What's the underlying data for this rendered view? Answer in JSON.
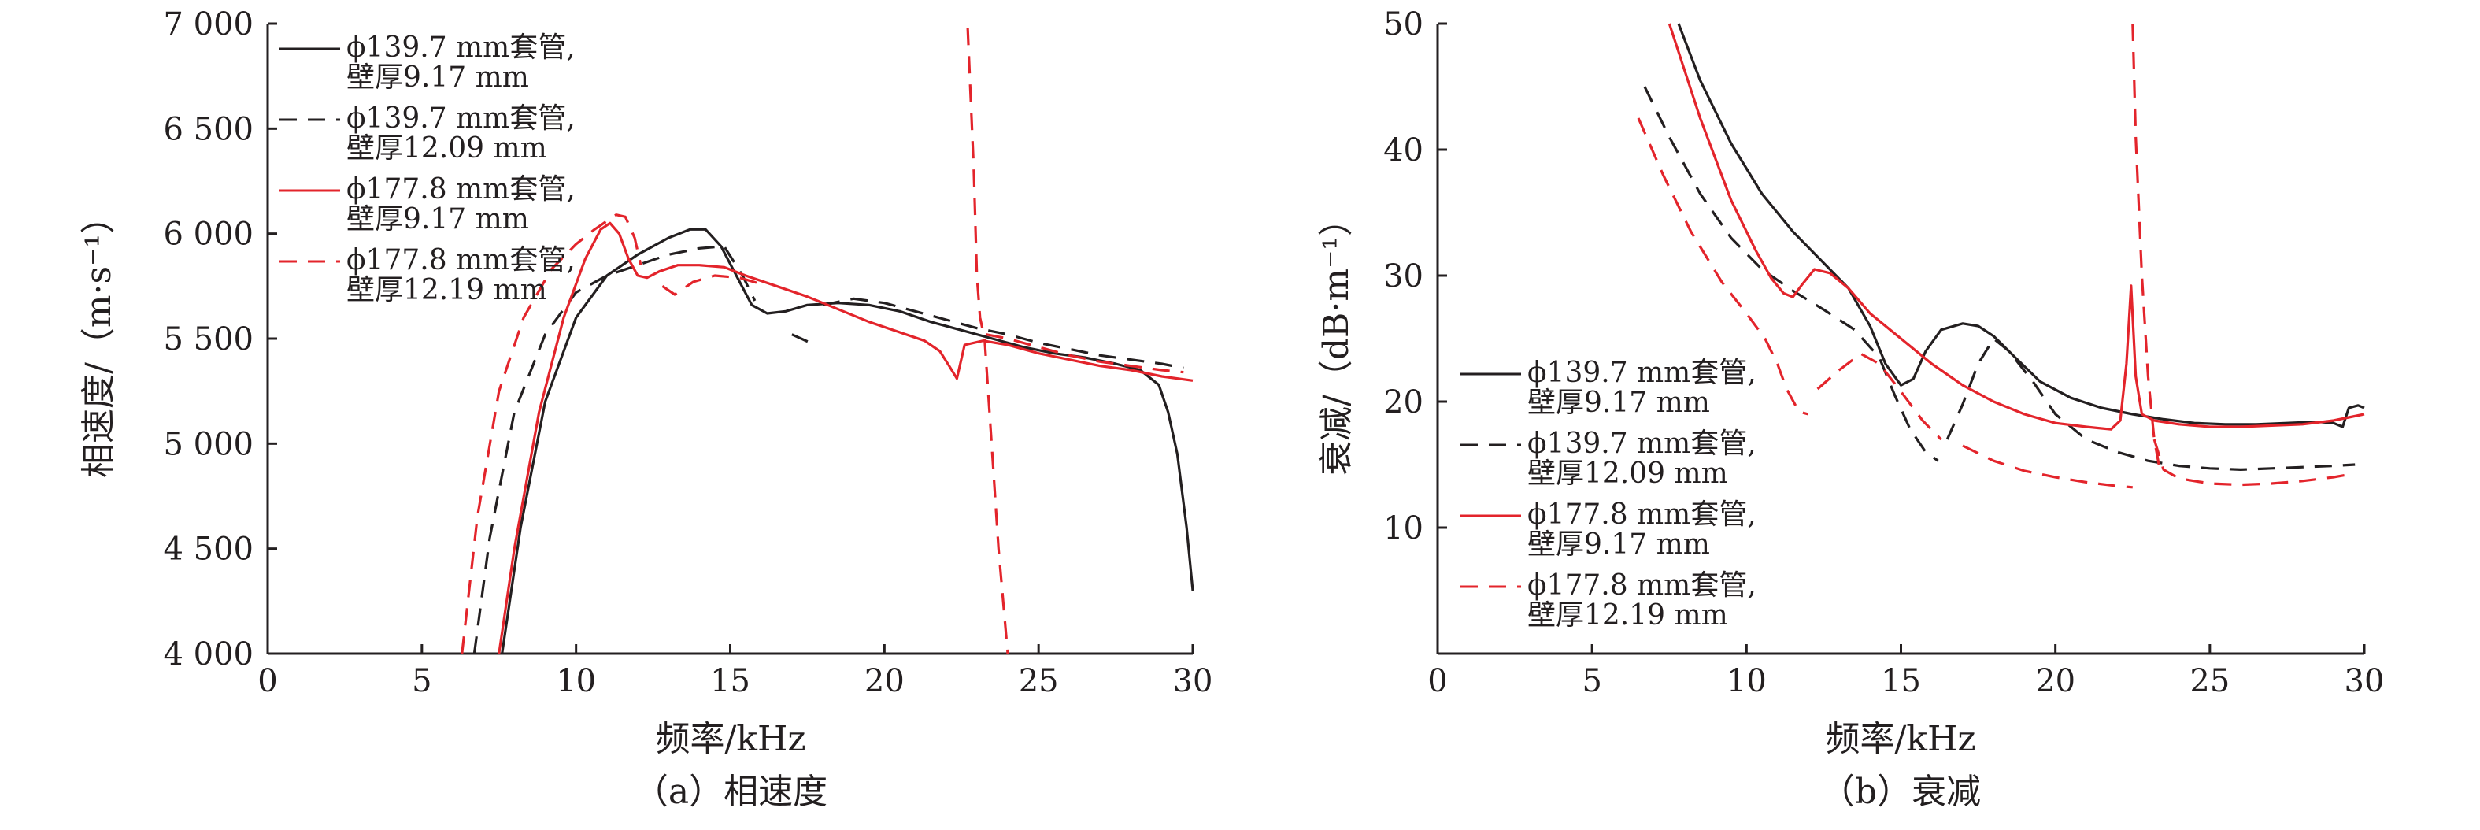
{
  "colors": {
    "black": "#231f20",
    "red": "#e3242b"
  },
  "chart_data": [
    {
      "type": "line",
      "caption": "（a）相速度",
      "xlabel": "频率/kHz",
      "ylabel": "相速度/（m·s⁻¹）",
      "xlim": [
        0,
        30
      ],
      "ylim": [
        4000,
        7000
      ],
      "xticks": [
        0,
        5,
        10,
        15,
        20,
        25,
        30
      ],
      "yticks": [
        4000,
        4500,
        5000,
        5500,
        6000,
        6500,
        7000
      ],
      "xtick_labels": [
        "0",
        "5",
        "10",
        "15",
        "20",
        "25",
        "30"
      ],
      "ytick_labels": [
        "4 000",
        "4 500",
        "5 000",
        "5 500",
        "6 000",
        "6 500",
        "7 000"
      ],
      "grid": false,
      "legend_position": "top-left",
      "series": [
        {
          "name": "ϕ139.7 mm套管, 壁厚9.17 mm",
          "legend_lines": [
            "ϕ139.7 mm套管,",
            "壁厚9.17 mm"
          ],
          "color": "#231f20",
          "dash": "solid",
          "x": [
            7.6,
            8.2,
            9.0,
            10.0,
            11.0,
            12.0,
            13.0,
            13.7,
            14.2,
            14.7,
            15.2,
            15.7,
            16.2,
            16.8,
            17.5,
            18.5,
            19.5,
            20.5,
            21.5,
            22.5,
            23.5,
            24.5,
            25.5,
            26.5,
            27.5,
            28.3,
            28.9,
            29.2,
            29.5,
            29.8,
            30.0
          ],
          "y": [
            4000,
            4600,
            5200,
            5600,
            5800,
            5900,
            5980,
            6020,
            6020,
            5940,
            5800,
            5660,
            5620,
            5630,
            5660,
            5670,
            5660,
            5630,
            5580,
            5540,
            5500,
            5460,
            5430,
            5410,
            5380,
            5350,
            5280,
            5150,
            4950,
            4600,
            4300
          ]
        },
        {
          "name": "ϕ139.7 mm套管, 壁厚12.09 mm",
          "legend_lines": [
            "ϕ139.7 mm套管,",
            "壁厚12.09 mm"
          ],
          "color": "#231f20",
          "dash": "dashed",
          "segments": [
            {
              "x": [
                6.7,
                7.2,
                8.0,
                9.0,
                10.0,
                11.0,
                12.0,
                13.0,
                14.0,
                14.8,
                15.4,
                15.8
              ],
              "y": [
                4000,
                4550,
                5150,
                5520,
                5720,
                5800,
                5850,
                5900,
                5930,
                5940,
                5800,
                5680
              ]
            },
            {
              "x": [
                17.0,
                17.6
              ],
              "y": [
                5520,
                5480
              ]
            },
            {
              "x": [
                18.0,
                19.0,
                20.0,
                21.0,
                22.0,
                23.0,
                24.0,
                25.0,
                26.0,
                27.0,
                28.0,
                29.0,
                29.7
              ],
              "y": [
                5660,
                5690,
                5670,
                5630,
                5590,
                5550,
                5520,
                5480,
                5450,
                5420,
                5400,
                5380,
                5360
              ]
            }
          ]
        },
        {
          "name": "ϕ177.8 mm套管, 壁厚9.17 mm",
          "legend_lines": [
            "ϕ177.8 mm套管,",
            "壁厚9.17 mm"
          ],
          "color": "#e3242b",
          "dash": "solid",
          "x": [
            7.5,
            8.0,
            8.8,
            9.6,
            10.3,
            10.8,
            11.1,
            11.4,
            11.7,
            12.0,
            12.3,
            12.7,
            13.3,
            14.0,
            14.8,
            15.5,
            16.5,
            17.5,
            18.5,
            19.5,
            20.5,
            21.3,
            21.8,
            22.1,
            22.35,
            22.6,
            23.2,
            24.0,
            25.0,
            26.0,
            27.0,
            28.0,
            29.0,
            30.0
          ],
          "y": [
            4000,
            4500,
            5150,
            5600,
            5880,
            6020,
            6050,
            6000,
            5880,
            5800,
            5790,
            5820,
            5850,
            5850,
            5840,
            5800,
            5750,
            5700,
            5640,
            5580,
            5530,
            5490,
            5440,
            5370,
            5310,
            5470,
            5490,
            5470,
            5430,
            5400,
            5370,
            5350,
            5320,
            5300
          ]
        },
        {
          "name": "ϕ177.8 mm套管, 壁厚12.19 mm",
          "legend_lines": [
            "ϕ177.8 mm套管,",
            "壁厚12.19 mm"
          ],
          "color": "#e3242b",
          "dash": "dashed",
          "segments": [
            {
              "x": [
                6.3,
                6.8,
                7.5,
                8.3,
                9.2,
                10.0,
                10.6,
                11.0,
                11.3,
                11.6,
                11.9,
                12.1
              ],
              "y": [
                4000,
                4650,
                5250,
                5600,
                5830,
                5950,
                6020,
                6060,
                6090,
                6080,
                5980,
                5850
              ]
            },
            {
              "x": [
                12.8,
                13.2,
                13.8,
                14.5,
                15.3,
                16.0
              ],
              "y": [
                5750,
                5710,
                5770,
                5800,
                5790,
                5760
              ]
            },
            {
              "x": [
                22.7,
                22.9,
                23.0,
                23.1,
                23.25
              ],
              "y": [
                6980,
                6300,
                5800,
                5600,
                5500
              ]
            },
            {
              "x": [
                23.25,
                23.5,
                23.7,
                24.0
              ],
              "y": [
                5500,
                4950,
                4500,
                4000
              ]
            },
            {
              "x": [
                23.3,
                24.0,
                25.0,
                26.0,
                27.0,
                28.0,
                29.0,
                29.7
              ],
              "y": [
                5520,
                5500,
                5460,
                5420,
                5390,
                5370,
                5350,
                5340
              ]
            }
          ]
        }
      ]
    },
    {
      "type": "line",
      "caption": "（b）衰减",
      "xlabel": "频率/kHz",
      "ylabel": "衰减/（dB·m⁻¹）",
      "xlim": [
        0,
        30
      ],
      "ylim": [
        0,
        50
      ],
      "xticks": [
        0,
        5,
        10,
        15,
        20,
        25,
        30
      ],
      "yticks": [
        10,
        20,
        30,
        40,
        50
      ],
      "xtick_labels": [
        "0",
        "5",
        "10",
        "15",
        "20",
        "25",
        "30"
      ],
      "ytick_labels": [
        "10",
        "20",
        "30",
        "40",
        "50"
      ],
      "grid": false,
      "legend_position": "bottom-left",
      "series": [
        {
          "name": "ϕ139.7 mm套管, 壁厚9.17 mm",
          "legend_lines": [
            "ϕ139.7 mm套管,",
            "壁厚9.17 mm"
          ],
          "color": "#231f20",
          "dash": "solid",
          "x": [
            7.8,
            8.5,
            9.5,
            10.5,
            11.5,
            12.5,
            13.3,
            14.0,
            14.5,
            15.0,
            15.4,
            15.8,
            16.3,
            17.0,
            17.5,
            18.0,
            18.7,
            19.5,
            20.5,
            21.5,
            22.5,
            23.5,
            24.5,
            25.5,
            26.5,
            27.5,
            28.5,
            29.0,
            29.3,
            29.5,
            29.8,
            30.0
          ],
          "y": [
            50,
            45.5,
            40.5,
            36.5,
            33.5,
            31.0,
            29.0,
            26.0,
            23.0,
            21.3,
            21.8,
            24.0,
            25.7,
            26.2,
            26.0,
            25.2,
            23.5,
            21.6,
            20.3,
            19.5,
            19.0,
            18.6,
            18.3,
            18.2,
            18.2,
            18.3,
            18.4,
            18.3,
            18.0,
            19.5,
            19.7,
            19.5
          ]
        },
        {
          "name": "ϕ139.7 mm套管, 壁厚12.09 mm",
          "legend_lines": [
            "ϕ139.7 mm套管,",
            "壁厚12.09 mm"
          ],
          "color": "#231f20",
          "dash": "dashed",
          "segments": [
            {
              "x": [
                6.7,
                7.5,
                8.5,
                9.5,
                10.5,
                11.5,
                12.5,
                13.5,
                14.3,
                14.8,
                15.3,
                15.8,
                16.2
              ],
              "y": [
                45,
                41.0,
                36.5,
                33.0,
                30.5,
                28.8,
                27.3,
                25.7,
                23.5,
                20.5,
                17.8,
                16.0,
                15.3
              ]
            },
            {
              "x": [
                16.5,
                17.0,
                17.5,
                18.0,
                18.5,
                19.3,
                20.0,
                21.0,
                22.0,
                23.0,
                24.0,
                25.0,
                26.0,
                27.0,
                28.0,
                29.0,
                29.7
              ],
              "y": [
                17.0,
                19.8,
                23.0,
                25.0,
                24.0,
                21.5,
                19.0,
                17.0,
                16.0,
                15.3,
                14.9,
                14.7,
                14.6,
                14.7,
                14.8,
                14.9,
                15.0
              ]
            }
          ]
        },
        {
          "name": "ϕ177.8 mm套管, 壁厚9.17 mm",
          "legend_lines": [
            "ϕ177.8 mm套管,",
            "壁厚9.17 mm"
          ],
          "color": "#e3242b",
          "dash": "solid",
          "x": [
            7.5,
            8.5,
            9.5,
            10.3,
            10.8,
            11.2,
            11.5,
            11.8,
            12.2,
            12.7,
            13.3,
            14.0,
            15.0,
            16.0,
            17.0,
            18.0,
            19.0,
            20.0,
            21.0,
            21.8,
            22.1,
            22.3,
            22.45,
            22.6,
            22.8,
            23.2,
            24.0,
            25.0,
            26.0,
            27.0,
            28.0,
            29.0,
            30.0
          ],
          "y": [
            50,
            42.5,
            36.0,
            32.0,
            29.8,
            28.6,
            28.3,
            29.3,
            30.5,
            30.2,
            29.0,
            27.0,
            25.0,
            23.0,
            21.3,
            20.0,
            19.0,
            18.3,
            18.0,
            17.8,
            18.5,
            23.0,
            29.2,
            22.0,
            19.0,
            18.5,
            18.2,
            18.0,
            18.0,
            18.1,
            18.2,
            18.5,
            19.0
          ]
        },
        {
          "name": "ϕ177.8 mm套管, 壁厚12.19 mm",
          "legend_lines": [
            "ϕ177.8 mm套管,",
            "壁厚12.19 mm"
          ],
          "color": "#e3242b",
          "dash": "dashed",
          "segments": [
            {
              "x": [
                6.5,
                7.3,
                8.2,
                9.2,
                10.0,
                10.6,
                11.0,
                11.3,
                11.7,
                12.0
              ],
              "y": [
                42.5,
                38.0,
                33.5,
                29.5,
                27.0,
                25.0,
                23.0,
                21.0,
                19.2,
                19.0
              ]
            },
            {
              "x": [
                12.3,
                13.0,
                13.7,
                14.3,
                15.0,
                15.7,
                16.3
              ],
              "y": [
                21.0,
                22.5,
                23.8,
                23.0,
                20.8,
                18.5,
                17.0
              ]
            },
            {
              "x": [
                17.0,
                18.0,
                19.0,
                20.0,
                21.0,
                22.0,
                22.5
              ],
              "y": [
                16.5,
                15.3,
                14.5,
                14.0,
                13.6,
                13.3,
                13.2
              ]
            },
            {
              "x": [
                22.5,
                22.6,
                22.8,
                23.0,
                23.2,
                23.35
              ],
              "y": [
                50,
                41.0,
                30.0,
                22.0,
                17.0,
                15.0
              ]
            },
            {
              "x": [
                23.2,
                23.5,
                24.0,
                25.0,
                26.0,
                27.0,
                28.0,
                29.0,
                29.7
              ],
              "y": [
                17.0,
                14.6,
                13.9,
                13.5,
                13.4,
                13.5,
                13.7,
                14.0,
                14.3
              ]
            }
          ]
        }
      ]
    }
  ]
}
